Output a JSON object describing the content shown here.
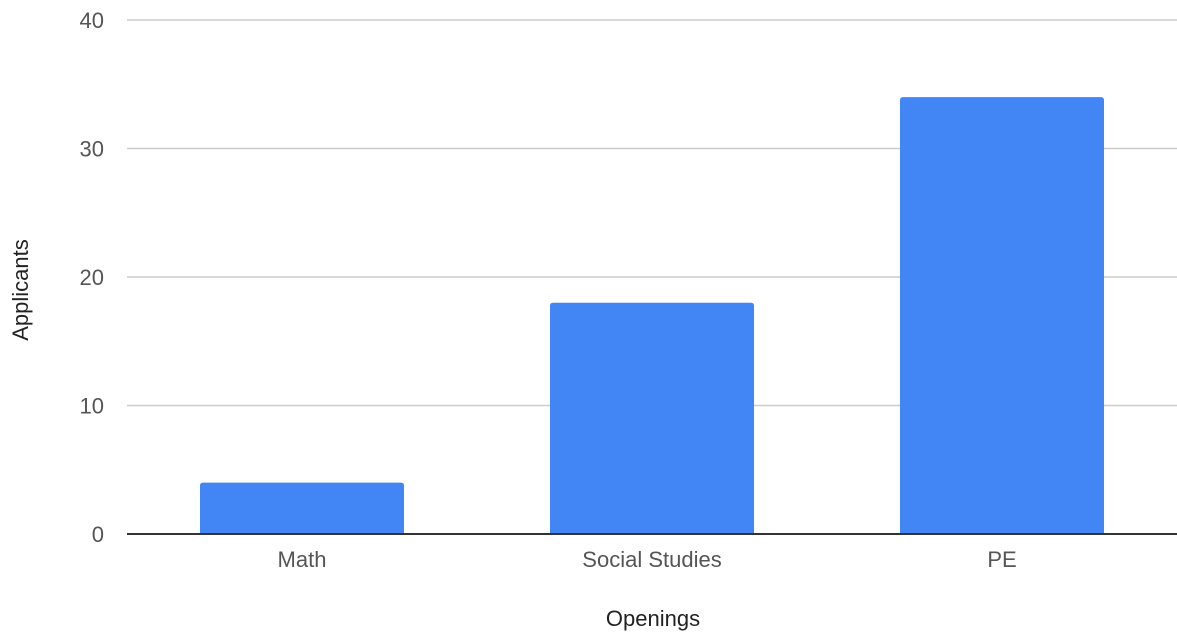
{
  "chart_data": {
    "type": "bar",
    "categories": [
      "Math",
      "Social Studies",
      "PE"
    ],
    "values": [
      4,
      18,
      34
    ],
    "title": "",
    "xlabel": "Openings",
    "ylabel": "Applicants",
    "ylim": [
      0,
      40
    ],
    "yticks": [
      "0",
      "10",
      "20",
      "30",
      "40"
    ],
    "grid": true,
    "legend": "none",
    "colors": {
      "bar": "#4285f4",
      "grid": "#cccccc",
      "axis": "#333333",
      "tick_text": "#555555",
      "label_text": "#222222"
    }
  }
}
